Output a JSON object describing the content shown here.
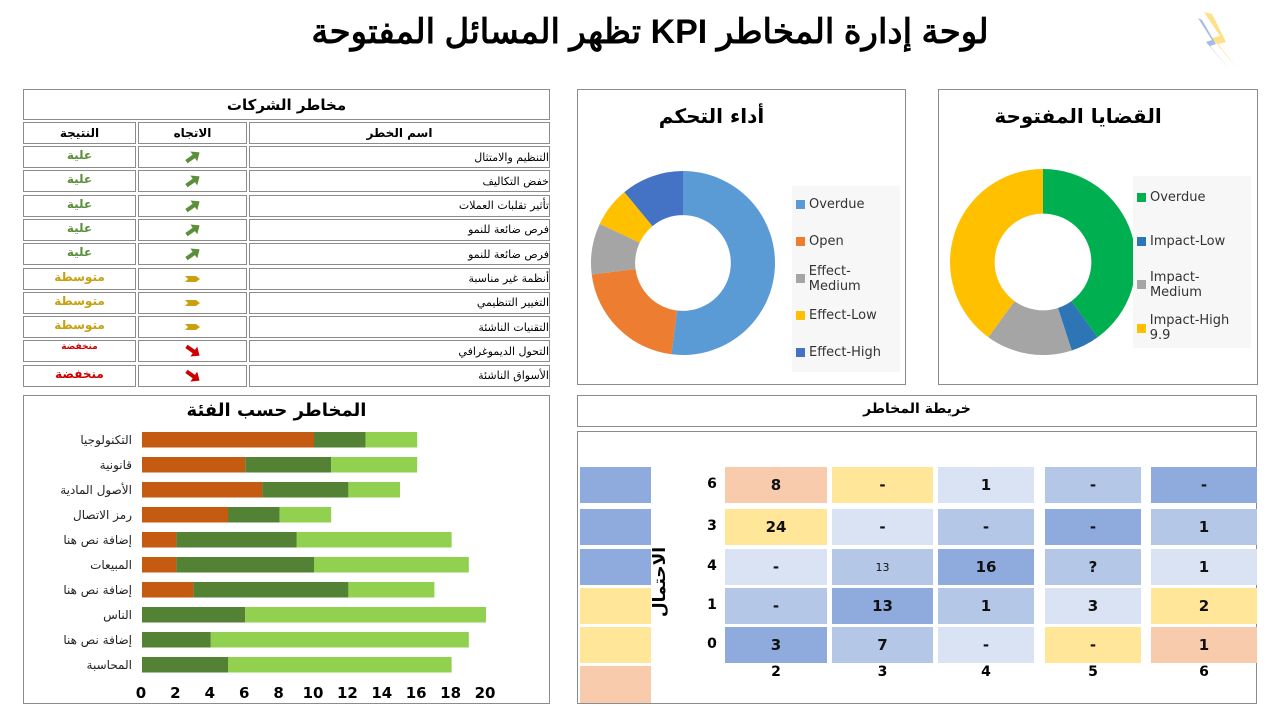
{
  "header": {
    "title": "لوحة إدارة المخاطر KPI تظهر المسائل المفتوحة",
    "logo_icon": "lightning-icon"
  },
  "corporate_risks": {
    "title": "مخاطر الشركات",
    "columns": {
      "name": "اسم الخطر",
      "trend": "الاتجاه",
      "result": "النتيجة"
    },
    "colors": {
      "high": "#5b8f3a",
      "medium": "#c9a010",
      "low": "#cc0000"
    },
    "rows": [
      {
        "name": "التنظيم والامتثال",
        "trend": "up",
        "result": "علية",
        "level": "high"
      },
      {
        "name": "خفض التكاليف",
        "trend": "up",
        "result": "علية",
        "level": "high"
      },
      {
        "name": "تأثير تقلبات العملات",
        "trend": "up",
        "result": "علية",
        "level": "high"
      },
      {
        "name": "فرص ضائعة للنمو",
        "trend": "up",
        "result": "علية",
        "level": "high"
      },
      {
        "name": "فرص ضائعة للنمو",
        "trend": "up",
        "result": "علية",
        "level": "high"
      },
      {
        "name": "أنظمة غير مناسبة",
        "trend": "flat",
        "result": "متوسطة",
        "level": "medium"
      },
      {
        "name": "التغيير التنظيمي",
        "trend": "flat",
        "result": "متوسطة",
        "level": "medium"
      },
      {
        "name": "التقنيات الناشئة",
        "trend": "flat",
        "result": "متوسطة",
        "level": "medium"
      },
      {
        "name": "التحول الديموغرافي",
        "trend": "down",
        "result": "منخفضة",
        "level": "low"
      },
      {
        "name": "الأسواق الناشئة",
        "trend": "down",
        "result": "منخفضة",
        "level": "low"
      }
    ]
  },
  "chart_data": [
    {
      "type": "bar",
      "orientation": "horizontal",
      "stacked": true,
      "title": "المخاطر حسب الفئة",
      "categories": [
        "التكنولوجيا",
        "قانونية",
        "الأصول المادية",
        "رمز الاتصال",
        "إضافة نص هنا",
        "المبيعات",
        "إضافة نص هنا",
        "الناس",
        "إضافة نص هنا",
        "المحاسبة"
      ],
      "series": [
        {
          "color": "#c55a11",
          "values": [
            10,
            6,
            7,
            5,
            2,
            2,
            3,
            0,
            0,
            0
          ]
        },
        {
          "color": "#548235",
          "values": [
            3,
            5,
            5,
            3,
            7,
            8,
            9,
            6,
            4,
            5
          ]
        },
        {
          "color": "#92d050",
          "values": [
            3,
            5,
            3,
            3,
            9,
            9,
            5,
            14,
            15,
            13
          ]
        }
      ],
      "xlim": [
        0,
        20
      ],
      "xticks": [
        "0",
        "2",
        "4",
        "6",
        "8",
        "10",
        "12",
        "14",
        "16",
        "18",
        "20"
      ],
      "grid": false
    },
    {
      "type": "pie",
      "donut": true,
      "title": "أداء التحكم",
      "legend_position": "right",
      "labels": [
        "Overdue",
        "Open",
        "Effect-Medium",
        "Effect-Low",
        "Effect-High"
      ],
      "values": [
        52,
        21,
        9,
        7,
        11
      ],
      "colors": [
        "#5b9bd5",
        "#ed7d31",
        "#a5a5a5",
        "#ffc000",
        "#4472c4"
      ]
    },
    {
      "type": "pie",
      "donut": true,
      "title": "القضايا المفتوحة",
      "legend_position": "right",
      "labels": [
        "Overdue",
        "Impact-Low",
        "Impact-Medium",
        "Impact-High 9.9"
      ],
      "values": [
        40,
        5,
        15,
        40
      ],
      "colors": [
        "#00b050",
        "#2e75b6",
        "#a5a5a5",
        "#ffc000"
      ]
    }
  ],
  "heatmap": {
    "title": "خريطة المخاطر",
    "y_axis_label": "الاحتمال",
    "row_labels": [
      "6",
      "3",
      "4",
      "1",
      "0"
    ],
    "col_labels": [
      "2",
      "3",
      "4",
      "5",
      "6"
    ],
    "palette": {
      "peach": "#f8cbad",
      "yellow": "#ffe699",
      "light": "#dae3f3",
      "mid": "#b4c7e7",
      "dark": "#8faadc"
    },
    "legend": [
      "dark",
      "dark",
      "dark",
      "yellow",
      "yellow",
      "peach"
    ],
    "cells": [
      [
        {
          "v": "8",
          "c": "peach"
        },
        {
          "v": "-",
          "c": "yellow"
        },
        {
          "v": "1",
          "c": "light"
        },
        {
          "v": "-",
          "c": "mid"
        },
        {
          "v": "-",
          "c": "dark"
        }
      ],
      [
        {
          "v": "24",
          "c": "yellow"
        },
        {
          "v": "-",
          "c": "light"
        },
        {
          "v": "-",
          "c": "mid"
        },
        {
          "v": "-",
          "c": "dark"
        },
        {
          "v": "1",
          "c": "mid"
        }
      ],
      [
        {
          "v": "-",
          "c": "light"
        },
        {
          "v": "13",
          "c": "mid"
        },
        {
          "v": "16",
          "c": "dark"
        },
        {
          "v": "?",
          "c": "mid"
        },
        {
          "v": "1",
          "c": "light"
        }
      ],
      [
        {
          "v": "-",
          "c": "mid"
        },
        {
          "v": "13",
          "c": "dark"
        },
        {
          "v": "1",
          "c": "mid"
        },
        {
          "v": "3",
          "c": "light"
        },
        {
          "v": "2",
          "c": "yellow"
        }
      ],
      [
        {
          "v": "3",
          "c": "dark"
        },
        {
          "v": "7",
          "c": "mid"
        },
        {
          "v": "-",
          "c": "light"
        },
        {
          "v": "-",
          "c": "yellow"
        },
        {
          "v": "1",
          "c": "peach"
        }
      ]
    ]
  }
}
